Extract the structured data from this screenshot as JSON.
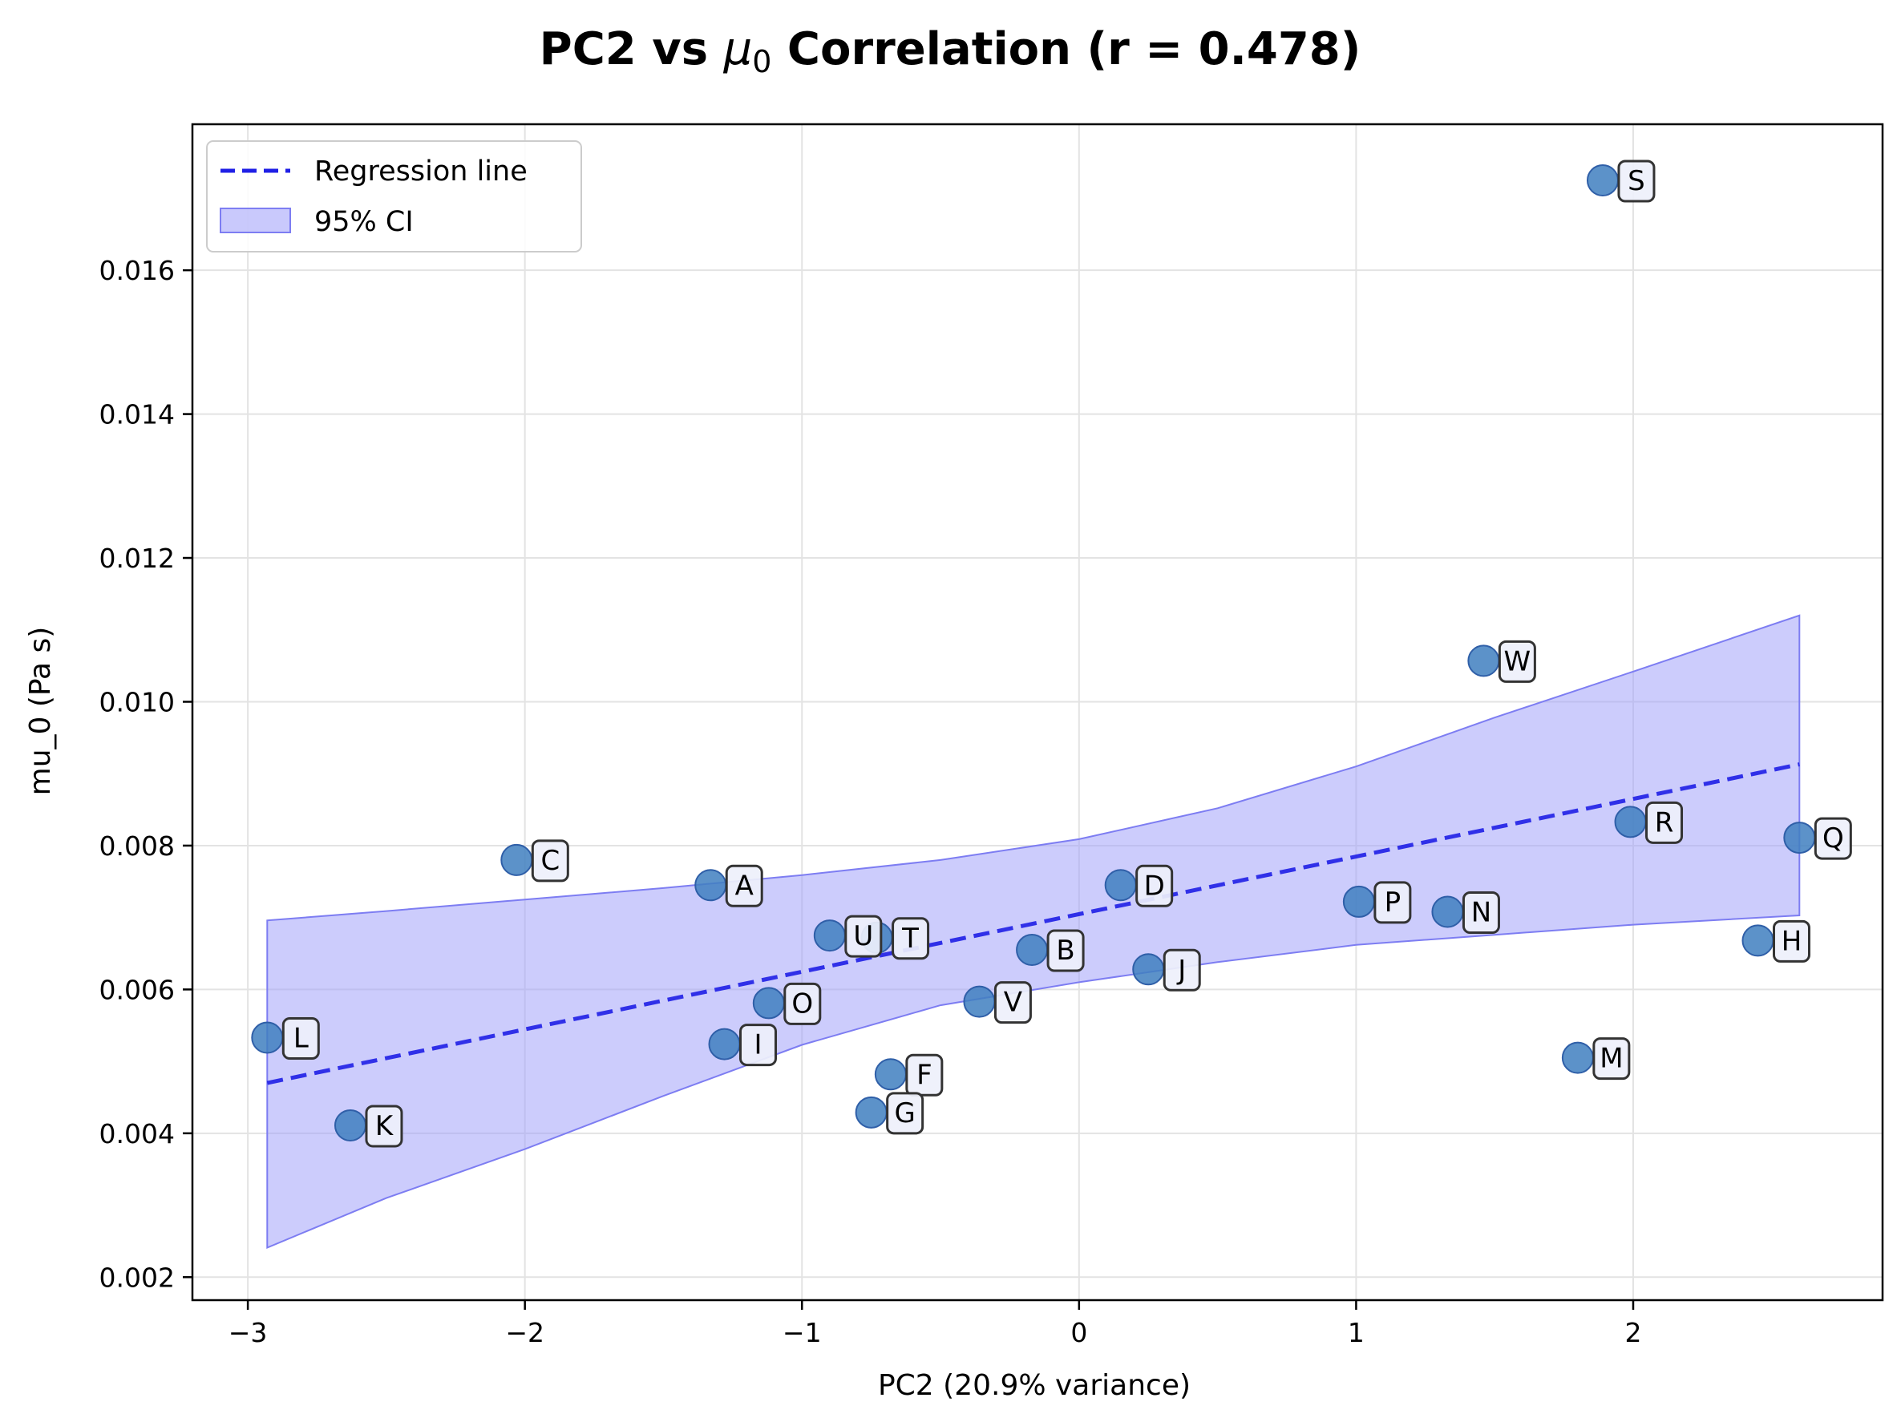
{
  "chart_data": {
    "type": "scatter",
    "title": "PC2 vs μ₀ Correlation (r = 0.478)",
    "title_parts": {
      "prefix": "PC2 vs ",
      "symbol": "μ",
      "subscript": "0",
      "suffix": " Correlation (r = 0.478)"
    },
    "xlabel": "PC2 (20.9% variance)",
    "ylabel": "mu_0 (Pa s)",
    "xlim": [
      -3.2,
      2.9
    ],
    "ylim": [
      0.00168,
      0.01803
    ],
    "xticks": [
      -3,
      -2,
      -1,
      0,
      1,
      2
    ],
    "xtick_labels": [
      "−3",
      "−2",
      "−1",
      "0",
      "1",
      "2"
    ],
    "yticks": [
      0.002,
      0.004,
      0.006,
      0.008,
      0.01,
      0.012,
      0.014,
      0.016
    ],
    "ytick_labels": [
      "0.002",
      "0.004",
      "0.006",
      "0.008",
      "0.010",
      "0.012",
      "0.014",
      "0.016"
    ],
    "grid": true,
    "legend_position": "top-left",
    "legend": [
      {
        "label": "Regression line",
        "kind": "dashed-line"
      },
      {
        "label": "95% CI",
        "kind": "band"
      }
    ],
    "colors": {
      "point": "#3f7fc0",
      "point_edge": "#2f5fa8",
      "regression": "#1f1fe6",
      "ci_fill": "#9d9dfa",
      "ci_edge": "#7d7df2",
      "grid": "#e3e3e3",
      "label_box_fill": "#eef0fb",
      "label_box_edge": "#333333"
    },
    "points": [
      {
        "label": "A",
        "x": -1.33,
        "y": 0.00745
      },
      {
        "label": "B",
        "x": -0.17,
        "y": 0.00655
      },
      {
        "label": "C",
        "x": -2.03,
        "y": 0.0078
      },
      {
        "label": "D",
        "x": 0.15,
        "y": 0.00745
      },
      {
        "label": "F",
        "x": -0.68,
        "y": 0.00482
      },
      {
        "label": "G",
        "x": -0.75,
        "y": 0.00429
      },
      {
        "label": "H",
        "x": 2.45,
        "y": 0.00668
      },
      {
        "label": "I",
        "x": -1.28,
        "y": 0.00524
      },
      {
        "label": "J",
        "x": 0.25,
        "y": 0.00628
      },
      {
        "label": "K",
        "x": -2.63,
        "y": 0.00411
      },
      {
        "label": "L",
        "x": -2.93,
        "y": 0.00533
      },
      {
        "label": "M",
        "x": 1.8,
        "y": 0.00505
      },
      {
        "label": "N",
        "x": 1.33,
        "y": 0.00708
      },
      {
        "label": "O",
        "x": -1.12,
        "y": 0.00581
      },
      {
        "label": "P",
        "x": 1.01,
        "y": 0.00722
      },
      {
        "label": "Q",
        "x": 2.6,
        "y": 0.00811
      },
      {
        "label": "R",
        "x": 1.99,
        "y": 0.00833
      },
      {
        "label": "S",
        "x": 1.89,
        "y": 0.01725
      },
      {
        "label": "T",
        "x": -0.73,
        "y": 0.00672
      },
      {
        "label": "U",
        "x": -0.9,
        "y": 0.00675
      },
      {
        "label": "V",
        "x": -0.36,
        "y": 0.00583
      },
      {
        "label": "W",
        "x": 1.46,
        "y": 0.01057
      }
    ],
    "regression": {
      "x": [
        -2.93,
        2.6
      ],
      "y": [
        0.0047,
        0.00913
      ]
    },
    "ci_band": {
      "x": [
        -2.93,
        -2.5,
        -2.0,
        -1.5,
        -1.0,
        -0.5,
        0.0,
        0.5,
        1.0,
        1.5,
        2.0,
        2.6
      ],
      "upper": [
        0.00696,
        0.00709,
        0.00725,
        0.00741,
        0.00759,
        0.0078,
        0.00809,
        0.00852,
        0.0091,
        0.00978,
        0.01042,
        0.0112
      ],
      "lower": [
        0.00241,
        0.0031,
        0.00378,
        0.00452,
        0.00523,
        0.00578,
        0.0061,
        0.00638,
        0.00662,
        0.00676,
        0.0069,
        0.00703
      ]
    }
  }
}
